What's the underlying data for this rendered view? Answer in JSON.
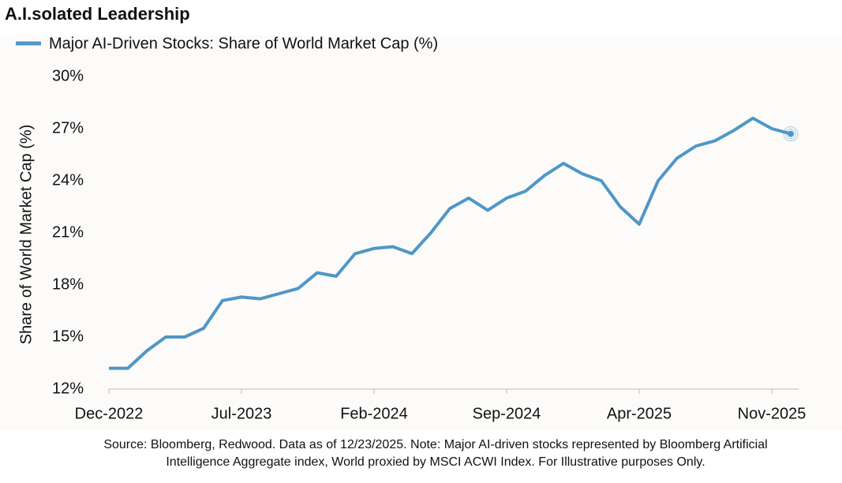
{
  "chart_data": {
    "type": "line",
    "title": "A.I.solated Leadership",
    "y_label": "Share of World Market Cap (%)",
    "source": [
      "Source: Bloomberg, Redwood. Data as of 12/23/2025. Note: Major AI-driven stocks represented by Bloomberg Artificial",
      "Intelligence Aggregate index, World proxied by MSCI ACWI Index. For Illustrative purposes Only."
    ],
    "categories": [
      "Dec-2022",
      null,
      null,
      null,
      null,
      null,
      null,
      "Jul-2023",
      null,
      null,
      null,
      null,
      null,
      null,
      "Feb-2024",
      null,
      null,
      null,
      null,
      null,
      null,
      "Sep-2024",
      null,
      null,
      null,
      null,
      null,
      null,
      "Apr-2025",
      null,
      null,
      null,
      null,
      null,
      null,
      "Nov-2025",
      null
    ],
    "series": [
      {
        "name": "Major AI-Driven Stocks: Share of World Market Cap (%)",
        "color": "#4f97c6",
        "values": [
          13.2,
          13.2,
          14.2,
          15.0,
          15.0,
          15.5,
          17.1,
          17.3,
          17.2,
          17.5,
          17.8,
          18.7,
          18.5,
          19.8,
          20.1,
          20.2,
          19.8,
          21.0,
          22.4,
          23.0,
          22.3,
          23.0,
          23.4,
          24.3,
          25.0,
          24.4,
          24.0,
          22.5,
          21.5,
          24.0,
          25.3,
          26.0,
          26.3,
          26.9,
          27.6,
          27.0,
          26.7
        ]
      }
    ],
    "ylim": [
      12,
      30
    ],
    "yticks": [
      {
        "value": 12,
        "label": "12%"
      },
      {
        "value": 15,
        "label": "15%"
      },
      {
        "value": 18,
        "label": "18%"
      },
      {
        "value": 21,
        "label": "21%"
      },
      {
        "value": 24,
        "label": "24%"
      },
      {
        "value": 27,
        "label": "27%"
      },
      {
        "value": 30,
        "label": "30%"
      }
    ],
    "grid": false
  }
}
